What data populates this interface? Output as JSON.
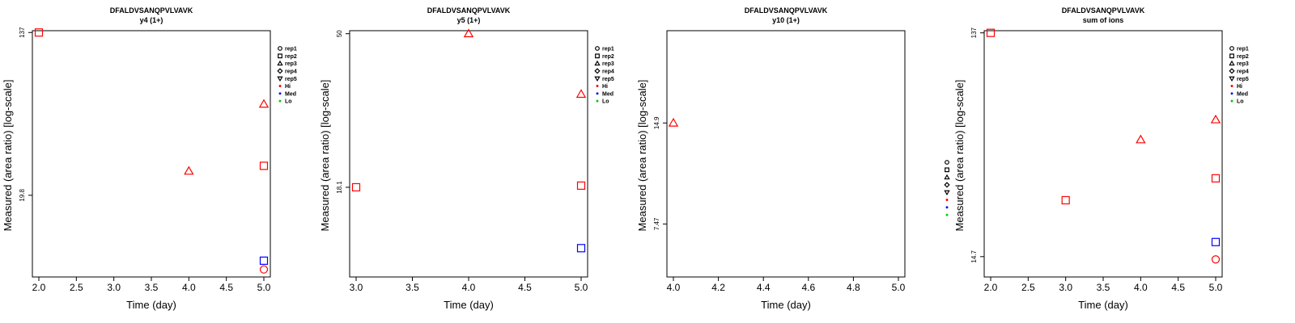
{
  "chart_data": [
    {
      "type": "scatter",
      "title": "DFALDVSANQPVLVAVK",
      "subtitle": "y4 (1+)",
      "xlabel": "Time (day)",
      "ylabel": "Measured (area ratio) [log-scale]",
      "y_scale": "log",
      "xlim": [
        2.0,
        5.0
      ],
      "ylim": [
        7.5,
        140
      ],
      "x_ticks": [
        "2.0",
        "2.5",
        "3.0",
        "3.5",
        "4.0",
        "4.5",
        "5.0"
      ],
      "y_ticks": [
        "137",
        "19.8"
      ],
      "y_tick_values": [
        137,
        19.8
      ],
      "legend_position": "right",
      "legend": [
        {
          "label": "rep1",
          "shape": "circle",
          "color": "#000000"
        },
        {
          "label": "rep2",
          "shape": "square",
          "color": "#000000"
        },
        {
          "label": "rep3",
          "shape": "triangle-up",
          "color": "#000000"
        },
        {
          "label": "rep4",
          "shape": "diamond",
          "color": "#000000"
        },
        {
          "label": "rep5",
          "shape": "triangle-down",
          "color": "#000000"
        },
        {
          "label": "Hi",
          "shape": "dot",
          "color": "#ff0000"
        },
        {
          "label": "Med",
          "shape": "dot",
          "color": "#0000ff"
        },
        {
          "label": "Lo",
          "shape": "dot",
          "color": "#00cc00"
        }
      ],
      "points": [
        {
          "x": 2.0,
          "y": 137,
          "shape": "square",
          "color": "#ff0000"
        },
        {
          "x": 4.0,
          "y": 26.4,
          "shape": "triangle-up",
          "color": "#ff0000"
        },
        {
          "x": 5.0,
          "y": 58.5,
          "shape": "triangle-up",
          "color": "#ff0000"
        },
        {
          "x": 5.0,
          "y": 28.1,
          "shape": "square",
          "color": "#ff0000"
        },
        {
          "x": 5.0,
          "y": 9.1,
          "shape": "square",
          "color": "#0000ff"
        },
        {
          "x": 5.0,
          "y": 8.2,
          "shape": "circle",
          "color": "#ff0000"
        }
      ]
    },
    {
      "type": "scatter",
      "title": "DFALDVSANQPVLVAVK",
      "subtitle": "y5 (1+)",
      "xlabel": "Time (day)",
      "ylabel": "Measured (area ratio) [log-scale]",
      "y_scale": "log",
      "xlim": [
        3.0,
        5.0
      ],
      "ylim": [
        10.0,
        51
      ],
      "x_ticks": [
        "3.0",
        "3.5",
        "4.0",
        "4.5",
        "5.0"
      ],
      "y_ticks": [
        "50",
        "18.1"
      ],
      "y_tick_values": [
        50,
        18.1
      ],
      "legend_position": "right",
      "legend": [
        {
          "label": "rep1",
          "shape": "circle",
          "color": "#000000"
        },
        {
          "label": "rep2",
          "shape": "square",
          "color": "#000000"
        },
        {
          "label": "rep3",
          "shape": "triangle-up",
          "color": "#000000"
        },
        {
          "label": "rep4",
          "shape": "diamond",
          "color": "#000000"
        },
        {
          "label": "rep5",
          "shape": "triangle-down",
          "color": "#000000"
        },
        {
          "label": "Hi",
          "shape": "dot",
          "color": "#ff0000"
        },
        {
          "label": "Med",
          "shape": "dot",
          "color": "#0000ff"
        },
        {
          "label": "Lo",
          "shape": "dot",
          "color": "#00cc00"
        }
      ],
      "points": [
        {
          "x": 3.0,
          "y": 18.1,
          "shape": "square",
          "color": "#ff0000"
        },
        {
          "x": 4.0,
          "y": 50,
          "shape": "triangle-up",
          "color": "#ff0000"
        },
        {
          "x": 5.0,
          "y": 33.5,
          "shape": "triangle-up",
          "color": "#ff0000"
        },
        {
          "x": 5.0,
          "y": 18.3,
          "shape": "square",
          "color": "#ff0000"
        },
        {
          "x": 5.0,
          "y": 12.1,
          "shape": "square",
          "color": "#0000ff"
        }
      ]
    },
    {
      "type": "scatter",
      "title": "DFALDVSANQPVLVAVK",
      "subtitle": "y10 (1+)",
      "xlabel": "Time (day)",
      "ylabel": "Measured (area ratio) [log-scale]",
      "y_scale": "log",
      "xlim": [
        4.0,
        5.0
      ],
      "ylim": [
        5.2,
        28
      ],
      "x_ticks": [
        "4.0",
        "4.2",
        "4.4",
        "4.6",
        "4.8",
        "5.0"
      ],
      "y_ticks": [
        "14.9",
        "7.47"
      ],
      "y_tick_values": [
        14.9,
        7.47
      ],
      "points": [
        {
          "x": 4.0,
          "y": 14.9,
          "shape": "triangle-up",
          "color": "#ff0000"
        }
      ]
    },
    {
      "type": "scatter",
      "title": "DFALDVSANQPVLVAVK",
      "subtitle": "sum of ions",
      "xlabel": "Time (day)",
      "ylabel": "Measured (area ratio) [log-scale]",
      "y_scale": "log",
      "xlim": [
        2.0,
        5.0
      ],
      "ylim": [
        12.0,
        140
      ],
      "x_ticks": [
        "2.0",
        "2.5",
        "3.0",
        "3.5",
        "4.0",
        "4.5",
        "5.0"
      ],
      "y_ticks": [
        "137",
        "14.7"
      ],
      "y_tick_values": [
        137,
        14.7
      ],
      "legend_position": "right",
      "legend": [
        {
          "label": "rep1",
          "shape": "circle",
          "color": "#000000"
        },
        {
          "label": "rep2",
          "shape": "square",
          "color": "#000000"
        },
        {
          "label": "rep3",
          "shape": "triangle-up",
          "color": "#000000"
        },
        {
          "label": "rep4",
          "shape": "diamond",
          "color": "#000000"
        },
        {
          "label": "rep5",
          "shape": "triangle-down",
          "color": "#000000"
        },
        {
          "label": "Hi",
          "shape": "dot",
          "color": "#ff0000"
        },
        {
          "label": "Med",
          "shape": "dot",
          "color": "#0000ff"
        },
        {
          "label": "Lo",
          "shape": "dot",
          "color": "#00cc00"
        }
      ],
      "side_legend": [
        {
          "shape": "circle",
          "color": "#000000"
        },
        {
          "shape": "square",
          "color": "#000000"
        },
        {
          "shape": "triangle-up",
          "color": "#000000"
        },
        {
          "shape": "diamond",
          "color": "#000000"
        },
        {
          "shape": "triangle-down",
          "color": "#000000"
        },
        {
          "shape": "dot",
          "color": "#ff0000"
        },
        {
          "shape": "dot",
          "color": "#0000ff"
        },
        {
          "shape": "dot",
          "color": "#00cc00"
        }
      ],
      "points": [
        {
          "x": 2.0,
          "y": 137,
          "shape": "square",
          "color": "#ff0000"
        },
        {
          "x": 3.0,
          "y": 25.8,
          "shape": "square",
          "color": "#ff0000"
        },
        {
          "x": 4.0,
          "y": 47.2,
          "shape": "triangle-up",
          "color": "#ff0000"
        },
        {
          "x": 5.0,
          "y": 57.6,
          "shape": "triangle-up",
          "color": "#ff0000"
        },
        {
          "x": 5.0,
          "y": 32.1,
          "shape": "square",
          "color": "#ff0000"
        },
        {
          "x": 5.0,
          "y": 17.0,
          "shape": "square",
          "color": "#0000ff"
        },
        {
          "x": 5.0,
          "y": 14.3,
          "shape": "circle",
          "color": "#ff0000"
        }
      ]
    }
  ]
}
